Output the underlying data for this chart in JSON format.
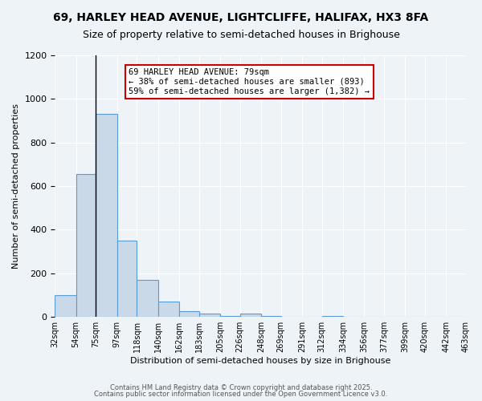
{
  "title": "69, HARLEY HEAD AVENUE, LIGHTCLIFFE, HALIFAX, HX3 8FA",
  "subtitle": "Size of property relative to semi-detached houses in Brighouse",
  "xlabel": "Distribution of semi-detached houses by size in Brighouse",
  "ylabel": "Number of semi-detached properties",
  "bar_values": [
    100,
    655,
    930,
    350,
    170,
    70,
    25,
    15,
    5,
    15,
    5,
    0,
    0,
    5,
    0,
    0,
    0,
    0,
    0,
    0
  ],
  "bin_edges": [
    32,
    54,
    75,
    97,
    118,
    140,
    162,
    183,
    205,
    226,
    248,
    269,
    291,
    312,
    334,
    356,
    377,
    399,
    420,
    442,
    463
  ],
  "bin_labels": [
    "32sqm",
    "54sqm",
    "75sqm",
    "97sqm",
    "118sqm",
    "140sqm",
    "162sqm",
    "183sqm",
    "205sqm",
    "226sqm",
    "248sqm",
    "269sqm",
    "291sqm",
    "312sqm",
    "334sqm",
    "356sqm",
    "377sqm",
    "399sqm",
    "420sqm",
    "442sqm",
    "463sqm"
  ],
  "bar_color": "#c9d9e8",
  "bar_edge_color": "#5b9bd5",
  "property_line_color": "#000000",
  "annotation_text": "69 HARLEY HEAD AVENUE: 79sqm\n← 38% of semi-detached houses are smaller (893)\n59% of semi-detached houses are larger (1,382) →",
  "annotation_box_color": "#ffffff",
  "annotation_box_edge": "#cc0000",
  "ylim": [
    0,
    1200
  ],
  "yticks": [
    0,
    200,
    400,
    600,
    800,
    1000,
    1200
  ],
  "background_color": "#eef3f8",
  "grid_color": "#ffffff",
  "footer_line1": "Contains HM Land Registry data © Crown copyright and database right 2025.",
  "footer_line2": "Contains public sector information licensed under the Open Government Licence v3.0."
}
